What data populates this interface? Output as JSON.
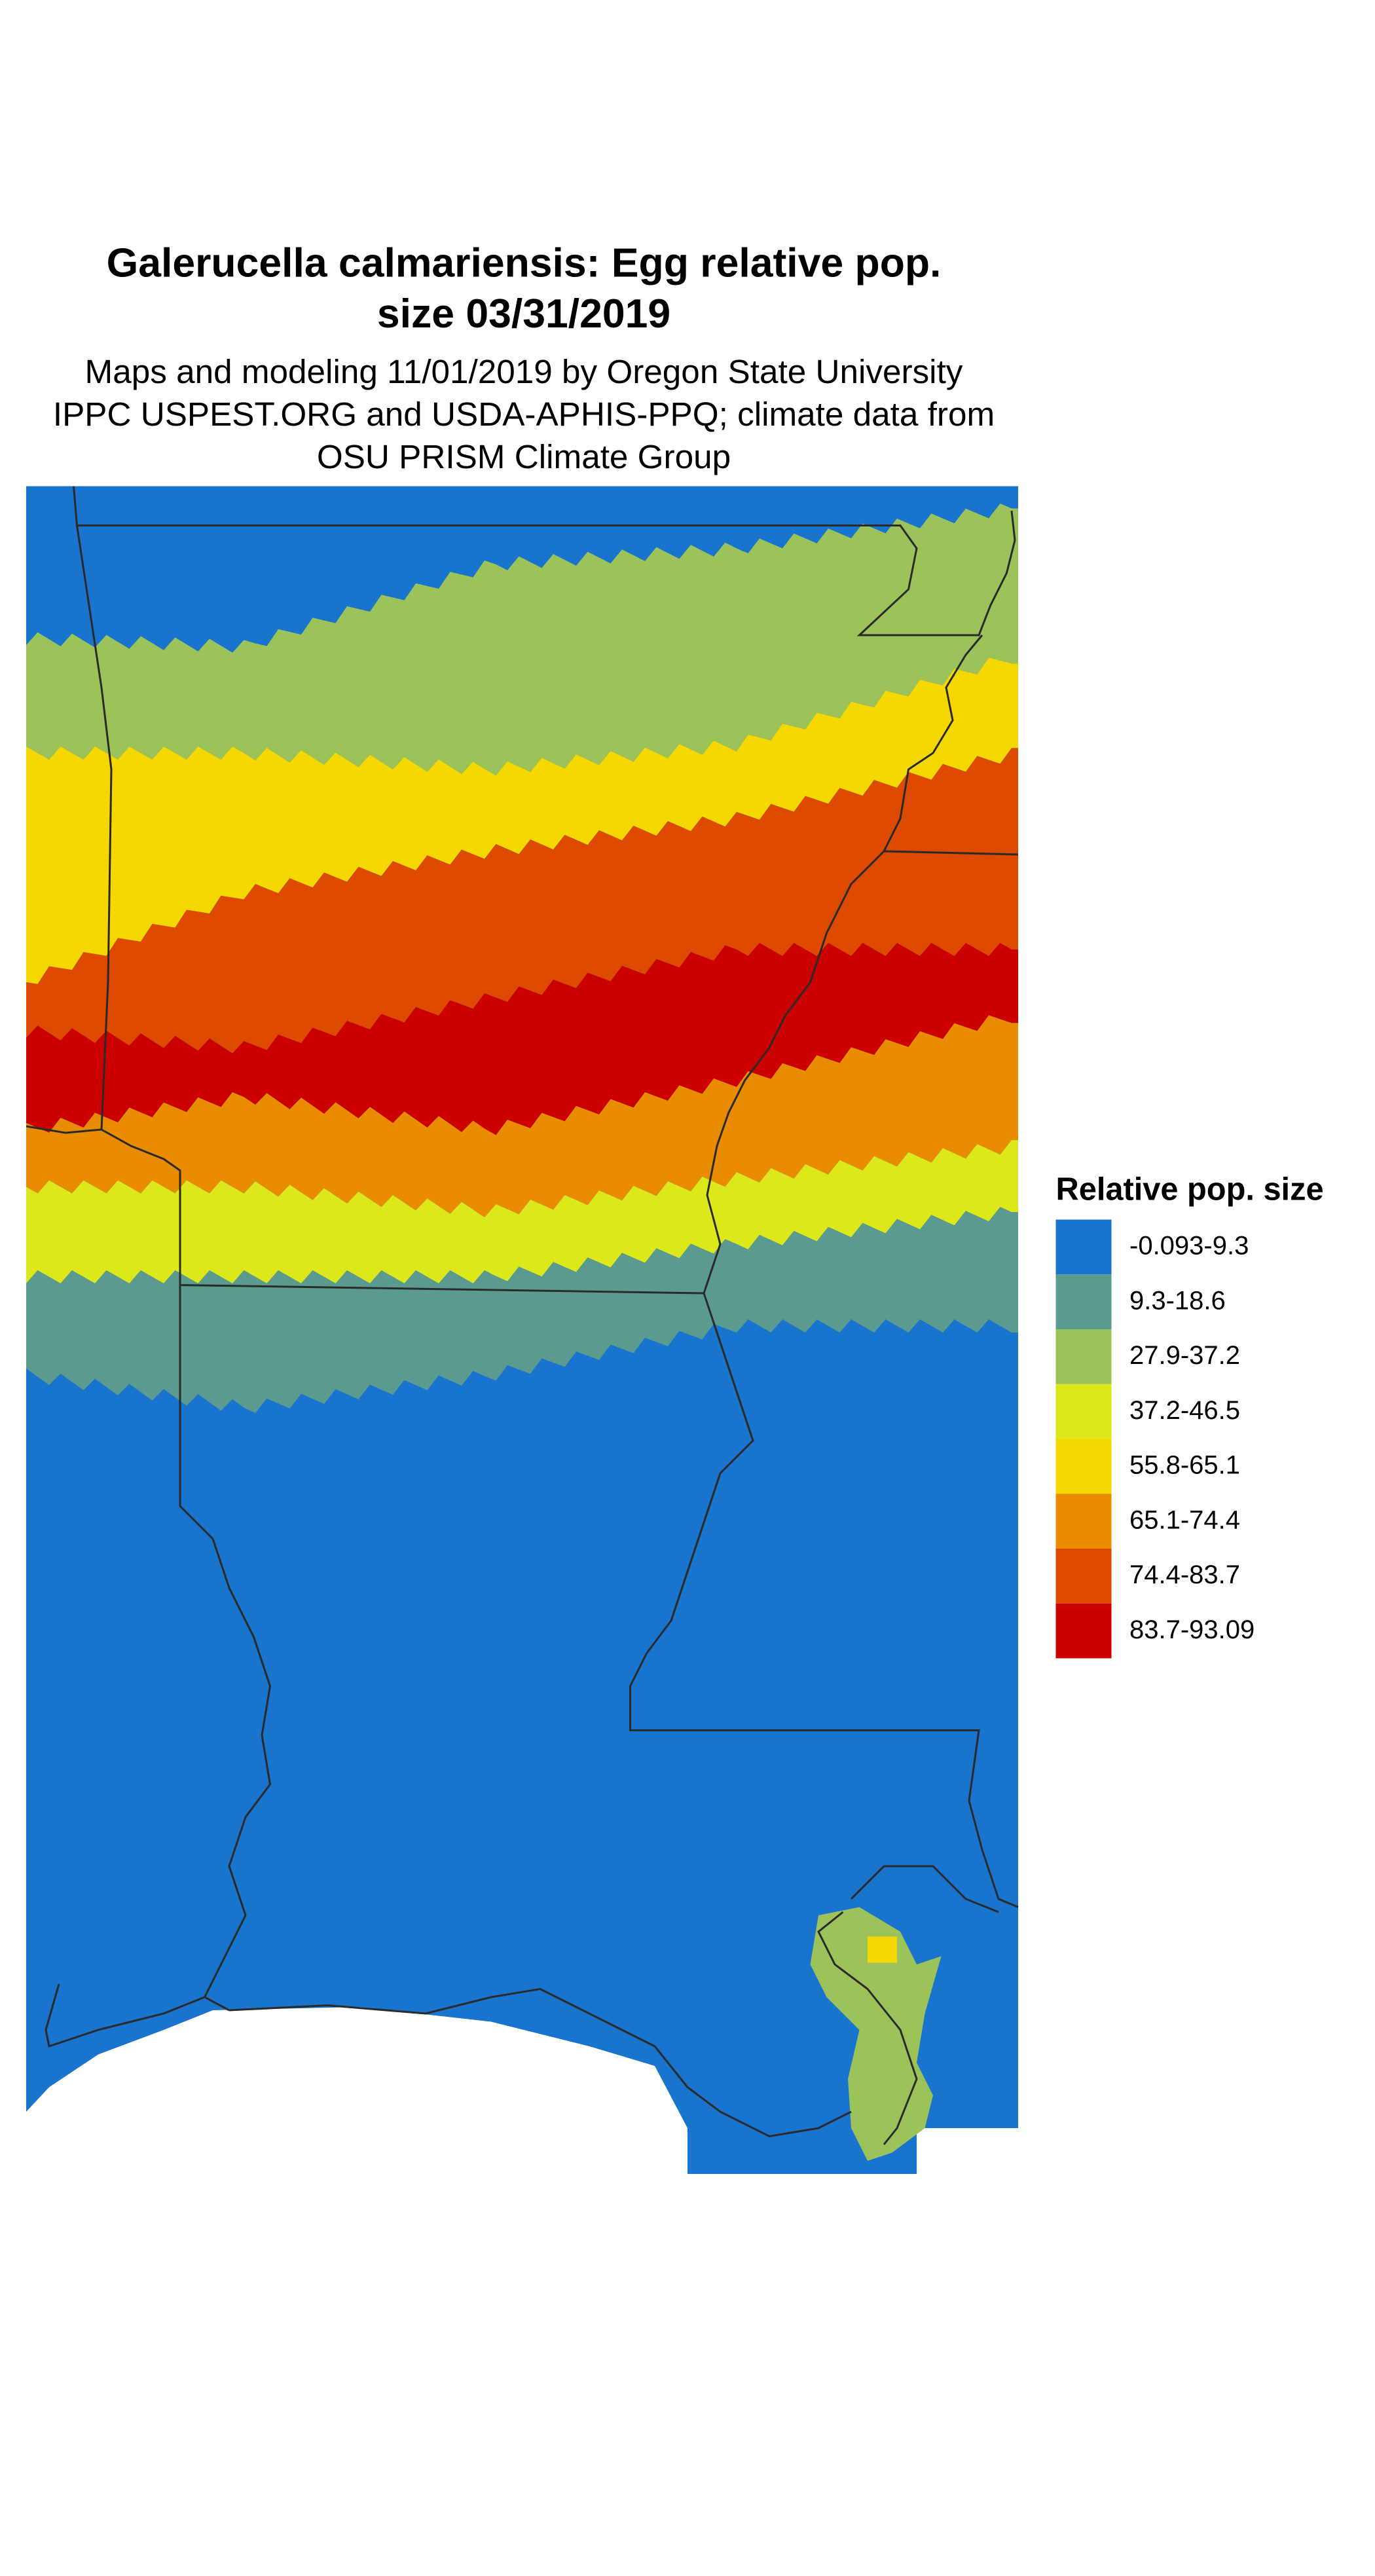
{
  "title_lines": [
    "Galerucella calmariensis: Egg relative pop.",
    "size 03/31/2019"
  ],
  "subtitle_lines": [
    "Maps and modeling 11/01/2019 by Oregon State University",
    "IPPC USPEST.ORG and USDA-APHIS-PPQ; climate data from",
    "OSU PRISM Climate Group"
  ],
  "legend": {
    "title": "Relative pop. size",
    "items": [
      {
        "label": "-0.093-9.3",
        "color": "#1874cd"
      },
      {
        "label": "9.3-18.6",
        "color": "#5a9a8f"
      },
      {
        "label": "27.9-37.2",
        "color": "#9cc25a"
      },
      {
        "label": "37.2-46.5",
        "color": "#dde81b"
      },
      {
        "label": "55.8-65.1",
        "color": "#f5d800"
      },
      {
        "label": "65.1-74.4",
        "color": "#ea8c00"
      },
      {
        "label": "74.4-83.7",
        "color": "#dd4a00"
      },
      {
        "label": "83.7-93.09",
        "color": "#cd0000"
      }
    ]
  }
}
